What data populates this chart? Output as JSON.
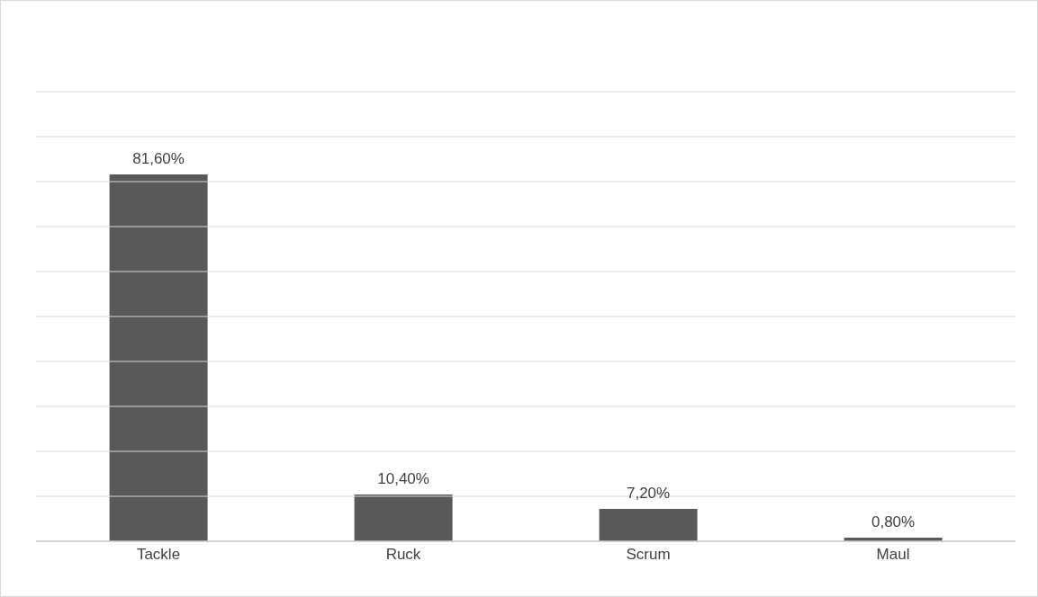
{
  "chart_data": {
    "type": "bar",
    "categories": [
      "Tackle",
      "Ruck",
      "Scrum",
      "Maul"
    ],
    "values": [
      81.6,
      10.4,
      7.2,
      0.8
    ],
    "value_labels": [
      "81,60%",
      "10,40%",
      "7,20%",
      "0,80%"
    ],
    "color": "#595959",
    "ylim": [
      0,
      100
    ],
    "yticks": [
      {
        "value": 0,
        "label": null
      },
      {
        "value": 10,
        "label": null
      },
      {
        "value": 20,
        "label": null
      },
      {
        "value": 30,
        "label": null
      },
      {
        "value": 40,
        "label": null
      },
      {
        "value": 50,
        "label": null
      },
      {
        "value": 60,
        "label": null
      },
      {
        "value": 70,
        "label": null
      },
      {
        "value": 80,
        "label": null
      },
      {
        "value": 90,
        "label": null
      },
      {
        "value": 100,
        "label": null
      }
    ],
    "grid": "y",
    "tick_labels": "x"
  }
}
